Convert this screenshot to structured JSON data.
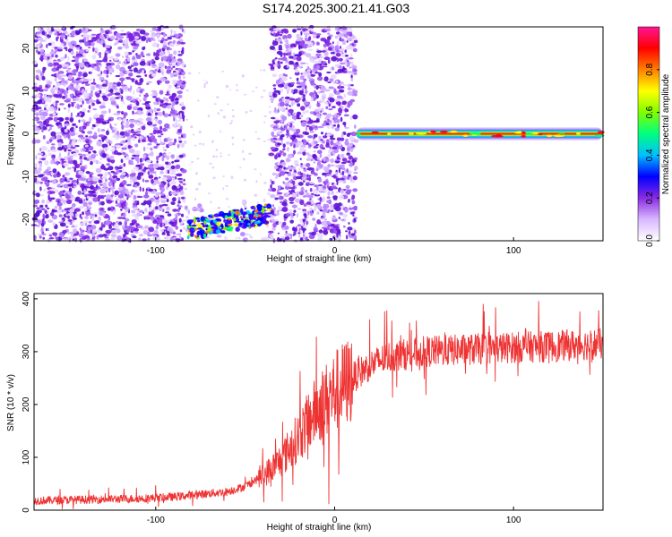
{
  "title": "S174.2025.300.21.41.G03",
  "chart_data": [
    {
      "type": "heatmap",
      "xlabel": "Height of straight line (km)",
      "ylabel": "Frequency (Hz)",
      "xlim": [
        -168,
        150
      ],
      "ylim": [
        -25,
        25
      ],
      "xticks": [
        -100,
        0,
        100
      ],
      "yticks": [
        -20,
        -10,
        0,
        10,
        20
      ],
      "colorbar": {
        "label": "Normalized spectral amplitude",
        "range": [
          0,
          1
        ],
        "ticks": [
          0.0,
          0.2,
          0.4,
          0.6,
          0.8
        ],
        "colors": [
          "#ffffff",
          "#d9b8ff",
          "#8a2be2",
          "#0000ff",
          "#00bfff",
          "#00ff80",
          "#80ff00",
          "#ffff00",
          "#ff8000",
          "#ff0000",
          "#ff1493"
        ]
      },
      "regions": [
        {
          "x_range": [
            -168,
            -84
          ],
          "y_range": [
            -25,
            25
          ],
          "amplitude": "noise"
        },
        {
          "x_range": [
            -84,
            -35
          ],
          "y_range": [
            -25,
            -15
          ],
          "amplitude": "sparse"
        },
        {
          "x_range": [
            -36,
            12
          ],
          "y_range": [
            -25,
            25
          ],
          "amplitude": "noise"
        }
      ],
      "signal_trace": {
        "description_points": [
          [
            12,
            0
          ],
          [
            150,
            0
          ]
        ],
        "slant_points": [
          [
            -82,
            -22.5
          ],
          [
            -36,
            -18.5
          ]
        ]
      }
    },
    {
      "type": "line",
      "xlabel": "Height of straight line (km)",
      "ylabel": "SNR (10 * v/v)",
      "xlim": [
        -168,
        150
      ],
      "ylim": [
        0,
        410
      ],
      "xticks": [
        -100,
        0,
        100
      ],
      "yticks": [
        0,
        100,
        200,
        300,
        400
      ],
      "series": [
        {
          "color": "#ee3333",
          "trend": {
            "x": [
              -168,
              -140,
              -110,
              -90,
              -75,
              -60,
              -50,
              -40,
              -30,
              -20,
              -10,
              0,
              10,
              20,
              30,
              50,
              80,
              100,
              120,
              150
            ],
            "y": [
              18,
              20,
              22,
              25,
              30,
              35,
              45,
              65,
              95,
              140,
              190,
              225,
              250,
              275,
              290,
              300,
              305,
              308,
              310,
              315
            ]
          }
        }
      ]
    }
  ]
}
